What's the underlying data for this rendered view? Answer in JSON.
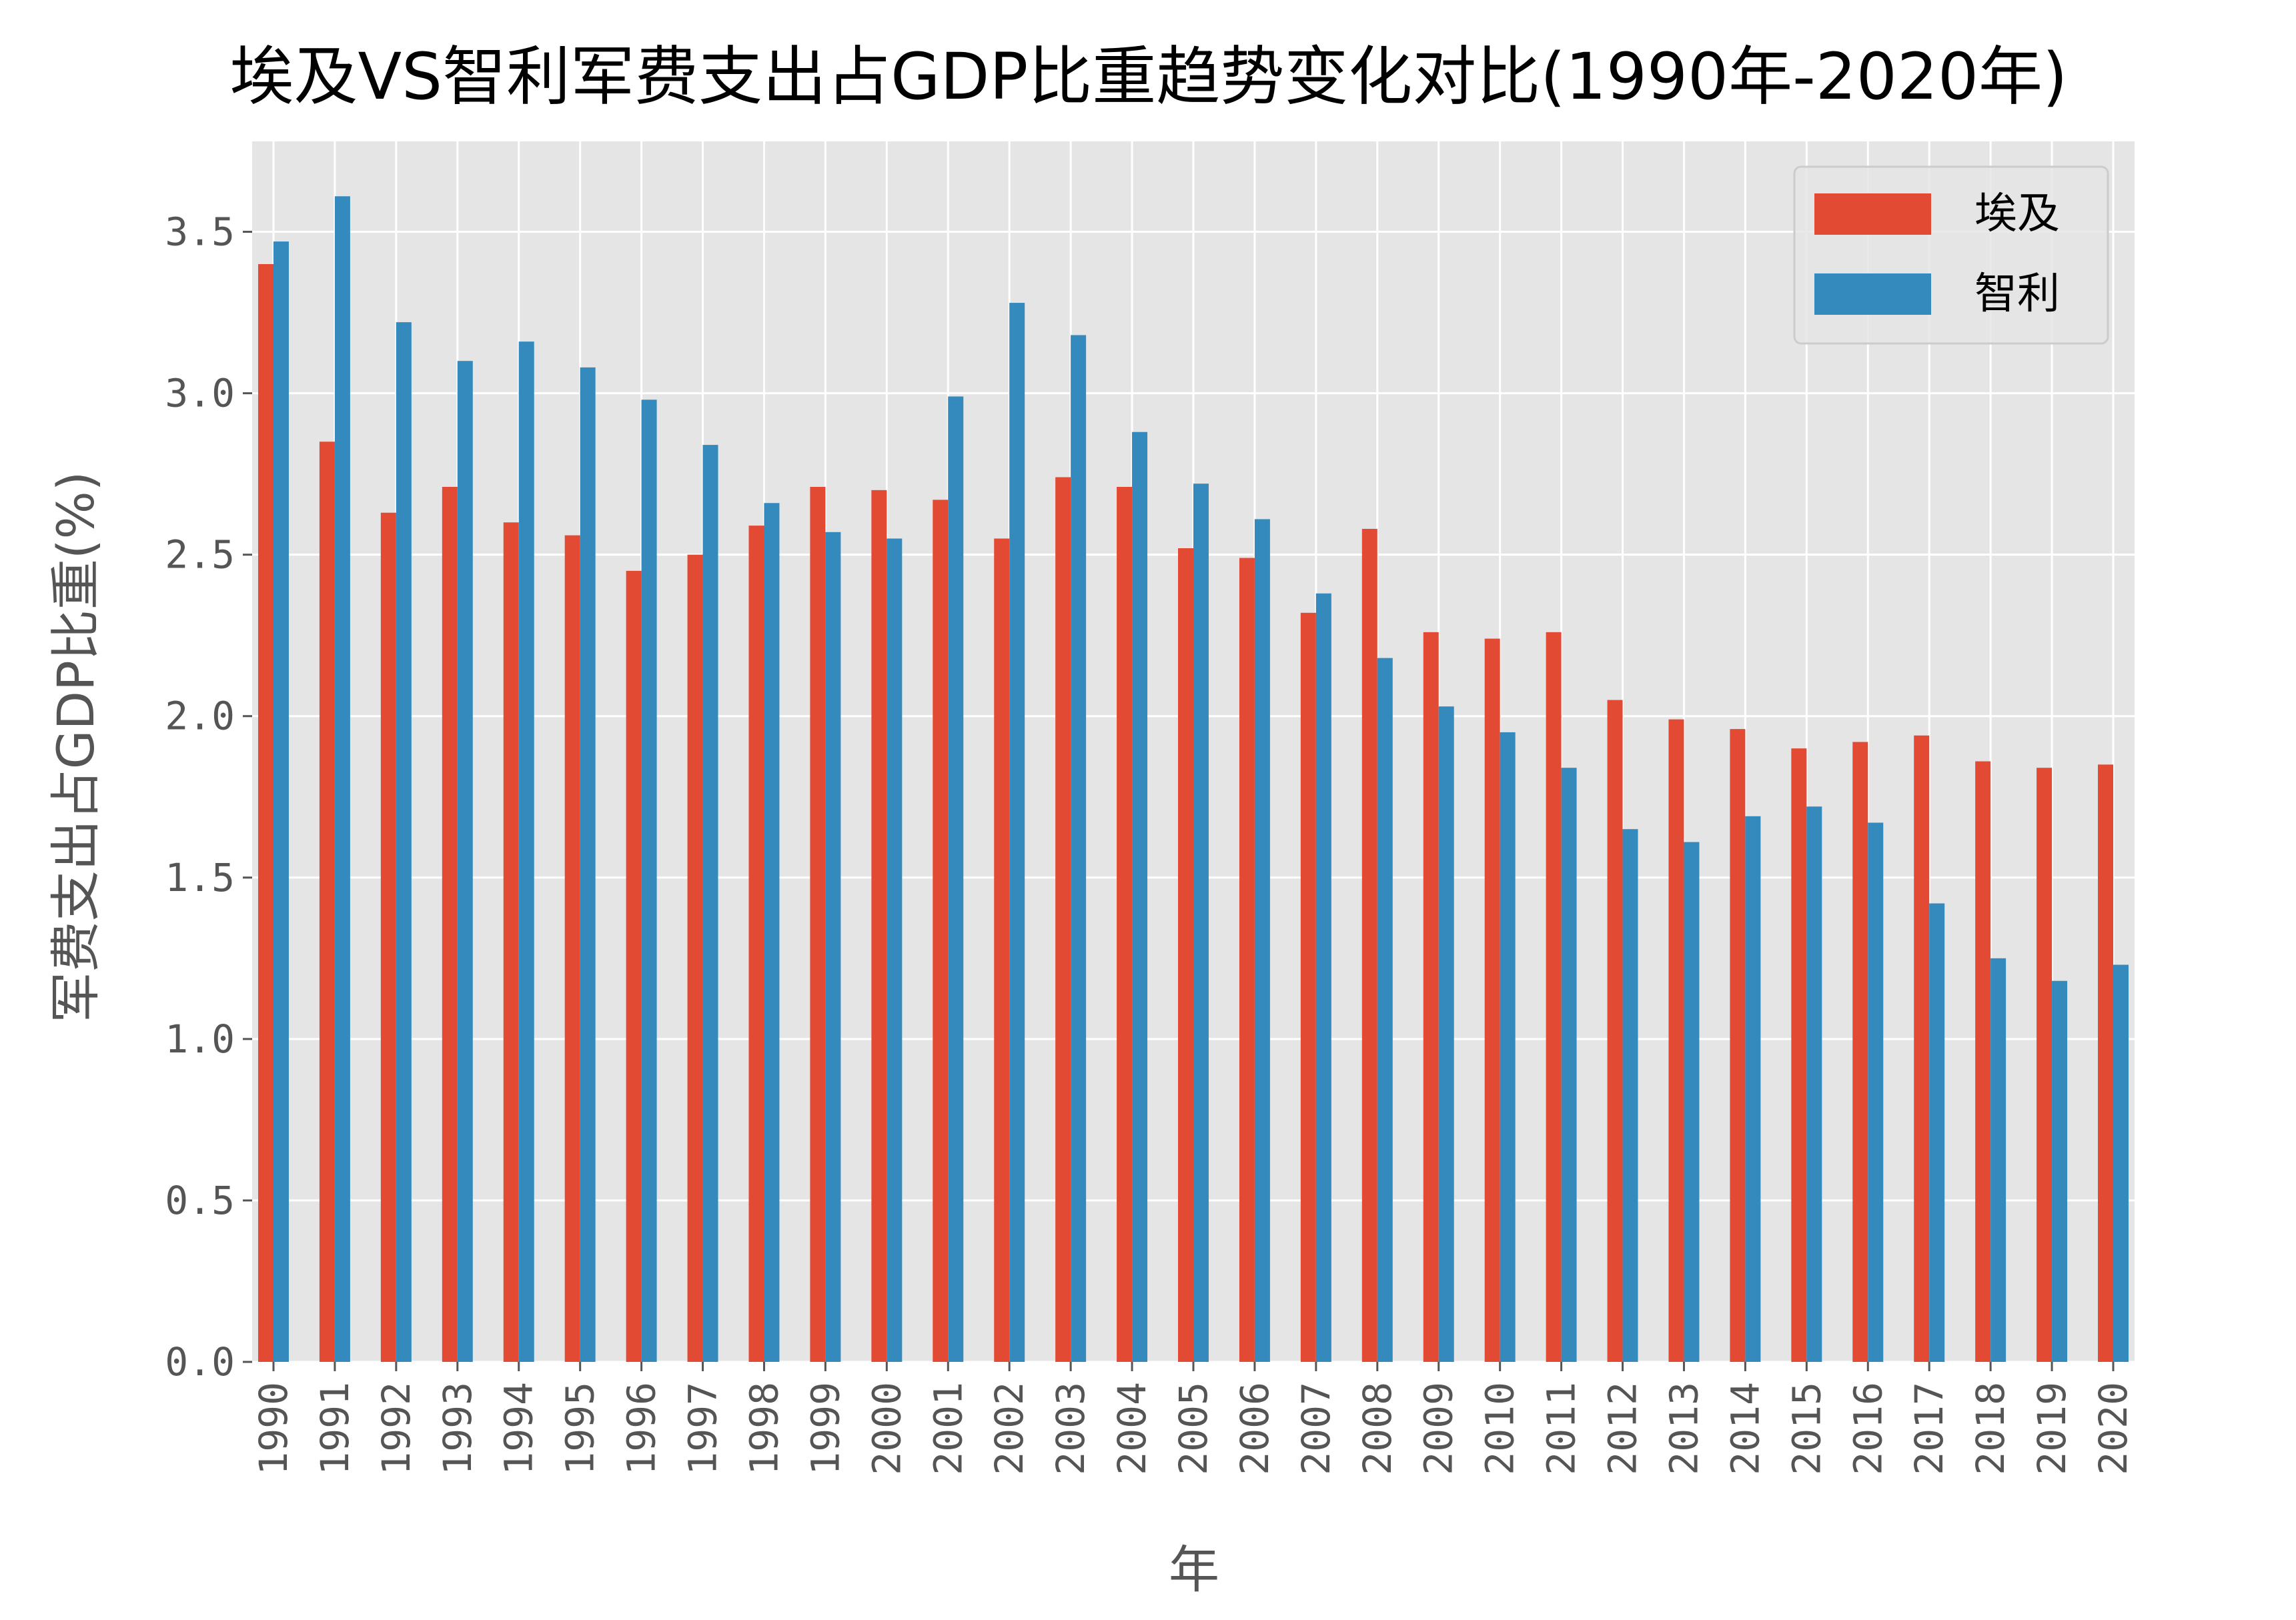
{
  "chart_data": {
    "type": "bar",
    "title": "埃及VS智利军费支出占GDP比重趋势变化对比(1990年-2020年)",
    "xlabel": "年",
    "ylabel": "军费支出占GDP比重(%)",
    "ylim": [
      0,
      3.78
    ],
    "yticks": [
      0.0,
      0.5,
      1.0,
      1.5,
      2.0,
      2.5,
      3.0,
      3.5
    ],
    "ytick_labels": [
      "0.0",
      "0.5",
      "1.0",
      "1.5",
      "2.0",
      "2.5",
      "3.0",
      "3.5"
    ],
    "grid": true,
    "legend_position": "top-right",
    "categories": [
      "1990",
      "1991",
      "1992",
      "1993",
      "1994",
      "1995",
      "1996",
      "1997",
      "1998",
      "1999",
      "2000",
      "2001",
      "2002",
      "2003",
      "2004",
      "2005",
      "2006",
      "2007",
      "2008",
      "2009",
      "2010",
      "2011",
      "2012",
      "2013",
      "2014",
      "2015",
      "2016",
      "2017",
      "2018",
      "2019",
      "2020"
    ],
    "series": [
      {
        "name": "埃及",
        "color": "#e24a33",
        "values": [
          3.4,
          2.85,
          2.63,
          2.71,
          2.6,
          2.56,
          2.45,
          2.5,
          2.59,
          2.71,
          2.7,
          2.67,
          2.55,
          2.74,
          2.71,
          2.52,
          2.49,
          2.32,
          2.58,
          2.26,
          2.24,
          2.26,
          2.05,
          1.99,
          1.96,
          1.9,
          1.92,
          1.94,
          1.86,
          1.84,
          1.85
        ]
      },
      {
        "name": "智利",
        "color": "#348abd",
        "values": [
          3.47,
          3.61,
          3.22,
          3.1,
          3.16,
          3.08,
          2.98,
          2.84,
          2.66,
          2.57,
          2.55,
          2.99,
          3.28,
          3.18,
          2.88,
          2.72,
          2.61,
          2.38,
          2.18,
          2.03,
          1.95,
          1.84,
          1.65,
          1.61,
          1.69,
          1.72,
          1.67,
          1.42,
          1.25,
          1.18,
          1.23
        ]
      }
    ],
    "colors": {
      "plot_background": "#e5e5e5",
      "grid": "#ffffff"
    }
  }
}
